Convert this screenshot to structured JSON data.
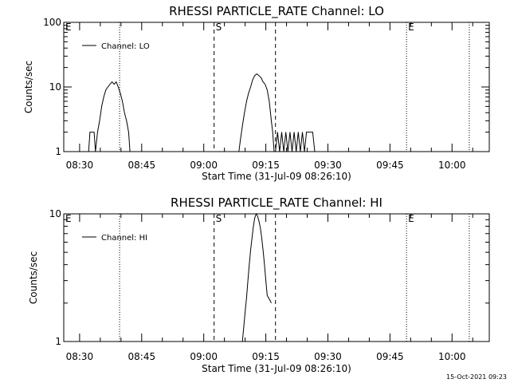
{
  "footer_timestamp": "15-Oct-2021 09:23",
  "chart_data": [
    {
      "type": "line",
      "title": "RHESSI PARTICLE_RATE Channel: LO",
      "xlabel": "Start Time (31-Jul-09 08:26:10)",
      "ylabel": "Counts/sec",
      "y_scale": "log",
      "ylim": [
        1,
        100
      ],
      "y_tick_labels": [
        "1",
        "10",
        "100"
      ],
      "x_tick_labels": [
        "08:30",
        "08:45",
        "09:00",
        "09:15",
        "09:30",
        "09:45",
        "10:00"
      ],
      "xlim": [
        "08:26:10",
        "10:09:00"
      ],
      "legend": {
        "placement": "top-left",
        "entries": [
          "Channel: LO"
        ]
      },
      "markers": [
        {
          "label": "E",
          "time": "08:26:10",
          "style": "dotted"
        },
        {
          "label": "",
          "time": "08:39:40",
          "style": "dotted"
        },
        {
          "label": "S",
          "time": "09:02:30",
          "style": "dashed"
        },
        {
          "label": "",
          "time": "09:17:20",
          "style": "dashed"
        },
        {
          "label": "E",
          "time": "09:49:00",
          "style": "dotted"
        },
        {
          "label": "",
          "time": "10:04:10",
          "style": "dotted"
        }
      ],
      "series": [
        {
          "segments": [
            {
              "x": [
                "08:32:10",
                "08:32:30",
                "08:33:30",
                "08:33:50",
                "08:34:20",
                "08:34:50",
                "08:35:20",
                "08:35:50",
                "08:36:20",
                "08:36:50",
                "08:37:20",
                "08:37:50",
                "08:38:20",
                "08:38:50",
                "08:39:20",
                "08:39:50",
                "08:40:20",
                "08:40:50",
                "08:41:20",
                "08:41:50",
                "08:42:10"
              ],
              "y": [
                1,
                2,
                2,
                1,
                2,
                3,
                5,
                7,
                9,
                10,
                11,
                12,
                11,
                12,
                10,
                8,
                6,
                4,
                3,
                2,
                1
              ]
            },
            {
              "x": [
                "09:08:30",
                "09:08:50",
                "09:09:20",
                "09:09:50",
                "09:10:20",
                "09:10:50",
                "09:11:20",
                "09:11:50",
                "09:12:20",
                "09:12:50",
                "09:13:20",
                "09:13:50",
                "09:14:20",
                "09:14:50",
                "09:15:20",
                "09:15:50",
                "09:16:20",
                "09:16:40",
                "09:17:00"
              ],
              "y": [
                1,
                1.5,
                2.5,
                4,
                6,
                8,
                10,
                13,
                15,
                16,
                15,
                14,
                12,
                11,
                9,
                6,
                3,
                2,
                1
              ]
            },
            {
              "x": [
                "09:17:20",
                "09:17:50",
                "09:18:20",
                "09:18:50",
                "09:19:20",
                "09:19:50",
                "09:20:20",
                "09:20:50",
                "09:21:20",
                "09:21:50",
                "09:22:20",
                "09:22:50",
                "09:23:20",
                "09:23:50",
                "09:24:20",
                "09:24:50",
                "09:25:20",
                "09:25:50",
                "09:26:20",
                "09:26:50",
                "09:27:20"
              ],
              "y": [
                1,
                2,
                1,
                2,
                1,
                2,
                1,
                2,
                1,
                2,
                1,
                2,
                1,
                2,
                1,
                2,
                2,
                2,
                2,
                1,
                1
              ]
            }
          ]
        }
      ]
    },
    {
      "type": "line",
      "title": "RHESSI PARTICLE_RATE Channel: HI",
      "xlabel": "Start Time (31-Jul-09 08:26:10)",
      "ylabel": "Counts/sec",
      "y_scale": "log",
      "ylim": [
        1,
        10
      ],
      "y_tick_labels": [
        "1",
        "10"
      ],
      "x_tick_labels": [
        "08:30",
        "08:45",
        "09:00",
        "09:15",
        "09:30",
        "09:45",
        "10:00"
      ],
      "xlim": [
        "08:26:10",
        "10:09:00"
      ],
      "legend": {
        "placement": "top-left",
        "entries": [
          "Channel: HI"
        ]
      },
      "markers": [
        {
          "label": "E",
          "time": "08:26:10",
          "style": "dotted"
        },
        {
          "label": "",
          "time": "08:39:40",
          "style": "dotted"
        },
        {
          "label": "S",
          "time": "09:02:30",
          "style": "dashed"
        },
        {
          "label": "",
          "time": "09:17:20",
          "style": "dashed"
        },
        {
          "label": "E",
          "time": "09:49:00",
          "style": "dotted"
        },
        {
          "label": "",
          "time": "10:04:10",
          "style": "dotted"
        }
      ],
      "series": [
        {
          "segments": [
            {
              "x": [
                "09:09:20",
                "09:09:40",
                "09:10:00",
                "09:10:20",
                "09:10:40",
                "09:11:00",
                "09:11:20",
                "09:11:40",
                "09:12:00",
                "09:12:20",
                "09:12:40",
                "09:13:00",
                "09:13:20",
                "09:13:40",
                "09:14:00",
                "09:14:20",
                "09:14:40",
                "09:15:00",
                "09:15:20",
                "09:15:40",
                "09:16:00",
                "09:16:20"
              ],
              "y": [
                1,
                1.3,
                1.7,
                2.2,
                3,
                4,
                5.2,
                6.5,
                8,
                9.3,
                10,
                9.6,
                8.8,
                7.8,
                6.5,
                5.2,
                4,
                3,
                2.3,
                2.2,
                2.1,
                2
              ]
            }
          ]
        }
      ]
    }
  ]
}
